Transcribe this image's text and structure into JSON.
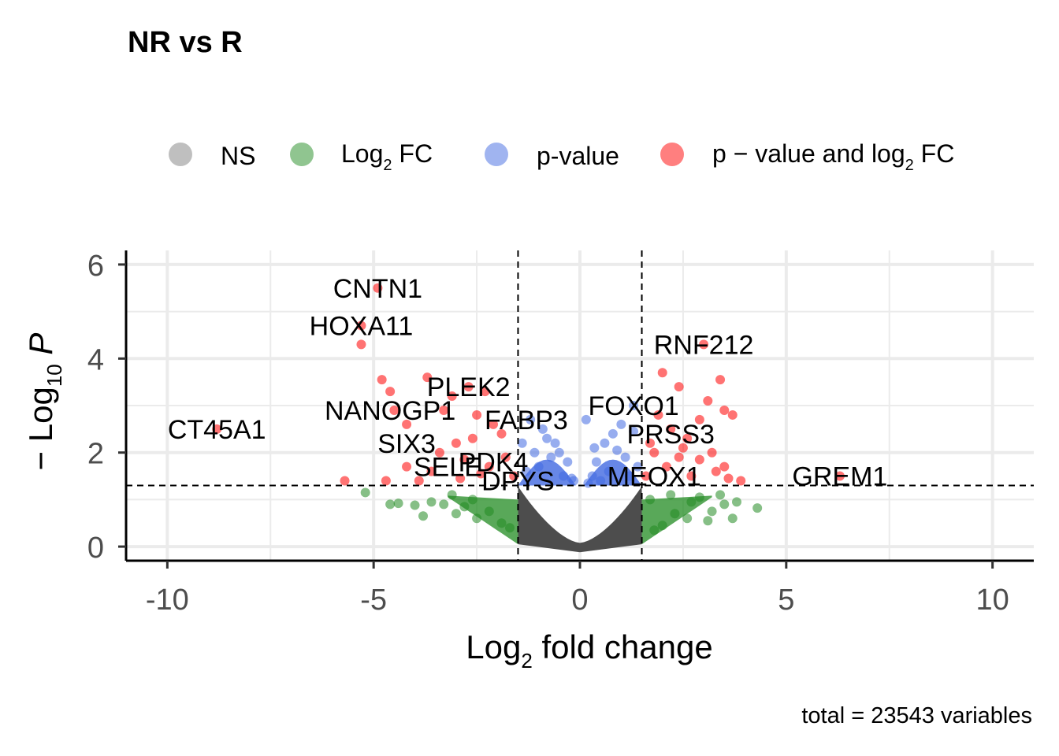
{
  "chart_data": {
    "type": "scatter",
    "title": "NR vs R",
    "xlabel": "Log2 fold change",
    "ylabel": "-Log10 P",
    "caption": "total = 23543 variables",
    "xlim": [
      -11,
      11
    ],
    "ylim": [
      -0.3,
      6.3
    ],
    "x_ticks": [
      -10,
      -5,
      0,
      5,
      10
    ],
    "y_ticks": [
      0,
      2,
      4,
      6
    ],
    "x_tick_labels": [
      "-10",
      "-5",
      "0",
      "5",
      "10"
    ],
    "y_tick_labels": [
      "0",
      "2",
      "4",
      "6"
    ],
    "grid": true,
    "legend_position": "top",
    "thresholds": {
      "log2fc": [
        -1.5,
        1.5
      ],
      "p_line_y": 1.3
    },
    "legend": [
      {
        "name": "NS",
        "color": "#808080"
      },
      {
        "name": "Log2 FC",
        "color": "#228b22"
      },
      {
        "name": "p-value",
        "color": "#4169e1"
      },
      {
        "name": "p − value and log2 FC",
        "color": "#ff0000"
      }
    ],
    "labeled_points": [
      {
        "label": "CNTN1",
        "x": -4.9,
        "y": 5.5
      },
      {
        "label": "HOXA11",
        "x": -5.3,
        "y": 4.7
      },
      {
        "label": "CT45A1",
        "x": -8.8,
        "y": 2.5
      },
      {
        "label": "NANOGP1",
        "x": -4.6,
        "y": 2.9
      },
      {
        "label": "SIX3",
        "x": -4.2,
        "y": 2.2
      },
      {
        "label": "SELE",
        "x": -3.2,
        "y": 1.7
      },
      {
        "label": "PLEK2",
        "x": -2.7,
        "y": 3.4
      },
      {
        "label": "FABP3",
        "x": -1.3,
        "y": 2.7
      },
      {
        "label": "PDK4",
        "x": -2.1,
        "y": 1.8
      },
      {
        "label": "DPYS",
        "x": -1.5,
        "y": 1.4
      },
      {
        "label": "FOXO1",
        "x": 1.3,
        "y": 3.0
      },
      {
        "label": "RNF212",
        "x": 3.0,
        "y": 4.3
      },
      {
        "label": "PRSS3",
        "x": 2.2,
        "y": 2.4
      },
      {
        "label": "MEOX1",
        "x": 1.8,
        "y": 1.5
      },
      {
        "label": "GREM1",
        "x": 6.3,
        "y": 1.5
      }
    ],
    "series": [
      {
        "name": "NS",
        "color": "#808080",
        "points": []
      },
      {
        "name": "Log2 FC",
        "color": "#228b22",
        "points": [
          [
            -5.2,
            1.15
          ],
          [
            -4.6,
            0.9
          ],
          [
            -4.4,
            0.92
          ],
          [
            -4.0,
            0.88
          ],
          [
            -3.6,
            0.95
          ],
          [
            -3.3,
            0.9
          ],
          [
            -3.0,
            0.7
          ],
          [
            -2.8,
            0.85
          ],
          [
            -2.5,
            0.6
          ],
          [
            -2.2,
            0.75
          ],
          [
            -1.9,
            0.5
          ],
          [
            -1.7,
            0.4
          ],
          [
            -2.6,
            1.0
          ],
          [
            -3.1,
            1.1
          ],
          [
            -3.8,
            0.65
          ],
          [
            3.8,
            0.95
          ],
          [
            4.3,
            0.82
          ],
          [
            3.5,
            0.9
          ],
          [
            3.2,
            0.75
          ],
          [
            2.9,
            1.05
          ],
          [
            2.6,
            0.6
          ],
          [
            2.3,
            0.7
          ],
          [
            2.0,
            0.45
          ],
          [
            1.8,
            0.35
          ],
          [
            3.1,
            0.55
          ],
          [
            3.4,
            1.1
          ],
          [
            2.7,
            0.95
          ],
          [
            1.7,
            1.0
          ],
          [
            2.2,
            1.1
          ],
          [
            3.7,
            0.6
          ]
        ]
      },
      {
        "name": "p-value",
        "color": "#4169e1",
        "points": [
          [
            -0.5,
            2.0
          ],
          [
            -0.8,
            2.3
          ],
          [
            -0.3,
            1.8
          ],
          [
            -1.2,
            2.7
          ],
          [
            -0.9,
            2.5
          ],
          [
            -0.6,
            2.2
          ],
          [
            -1.0,
            1.7
          ],
          [
            -0.4,
            1.5
          ],
          [
            -0.2,
            1.45
          ],
          [
            -1.3,
            1.6
          ],
          [
            -0.7,
            1.9
          ],
          [
            -1.1,
            2.0
          ],
          [
            0.4,
            1.8
          ],
          [
            0.6,
            2.2
          ],
          [
            0.8,
            2.4
          ],
          [
            1.0,
            2.6
          ],
          [
            1.3,
            2.45
          ],
          [
            1.1,
            1.9
          ],
          [
            0.7,
            1.6
          ],
          [
            0.3,
            1.5
          ],
          [
            0.5,
            1.4
          ],
          [
            1.4,
            1.7
          ],
          [
            0.2,
            1.35
          ],
          [
            0.9,
            2.05
          ],
          [
            1.3,
            3.0
          ],
          [
            0.15,
            2.7
          ],
          [
            -0.15,
            1.4
          ],
          [
            0.35,
            2.1
          ],
          [
            -1.4,
            2.2
          ],
          [
            1.2,
            1.5
          ]
        ]
      },
      {
        "name": "p − value and log2 FC",
        "color": "#ff0000",
        "points": [
          [
            -4.9,
            5.5
          ],
          [
            -5.3,
            4.7
          ],
          [
            -5.3,
            4.3
          ],
          [
            -8.8,
            2.5
          ],
          [
            -4.6,
            3.3
          ],
          [
            -4.8,
            3.55
          ],
          [
            -4.5,
            2.9
          ],
          [
            -4.2,
            2.6
          ],
          [
            -3.7,
            3.6
          ],
          [
            -3.3,
            2.9
          ],
          [
            -3.1,
            3.2
          ],
          [
            -2.7,
            3.4
          ],
          [
            -2.3,
            3.3
          ],
          [
            -2.5,
            2.8
          ],
          [
            -2.1,
            2.6
          ],
          [
            -1.9,
            2.4
          ],
          [
            -2.6,
            2.3
          ],
          [
            -3.0,
            2.2
          ],
          [
            -3.4,
            2.0
          ],
          [
            -2.8,
            1.85
          ],
          [
            -2.2,
            1.7
          ],
          [
            -3.6,
            1.6
          ],
          [
            -4.2,
            1.7
          ],
          [
            -4.7,
            1.4
          ],
          [
            -5.7,
            1.4
          ],
          [
            -3.9,
            1.4
          ],
          [
            -2.9,
            1.45
          ],
          [
            -2.4,
            1.55
          ],
          [
            -1.8,
            1.9
          ],
          [
            -1.6,
            1.5
          ],
          [
            3.0,
            4.3
          ],
          [
            2.0,
            3.7
          ],
          [
            3.1,
            3.1
          ],
          [
            3.4,
            3.55
          ],
          [
            2.4,
            3.4
          ],
          [
            3.5,
            2.9
          ],
          [
            3.7,
            2.8
          ],
          [
            2.9,
            2.7
          ],
          [
            2.6,
            2.3
          ],
          [
            2.2,
            2.5
          ],
          [
            1.9,
            2.8
          ],
          [
            1.7,
            2.2
          ],
          [
            2.4,
            1.9
          ],
          [
            2.9,
            1.85
          ],
          [
            3.2,
            2.0
          ],
          [
            3.5,
            1.7
          ],
          [
            3.9,
            1.4
          ],
          [
            2.1,
            1.7
          ],
          [
            1.6,
            1.5
          ],
          [
            6.3,
            1.5
          ],
          [
            2.7,
            1.5
          ],
          [
            3.3,
            1.6
          ],
          [
            1.8,
            2.0
          ],
          [
            2.5,
            2.1
          ],
          [
            3.6,
            1.45
          ]
        ]
      }
    ]
  }
}
